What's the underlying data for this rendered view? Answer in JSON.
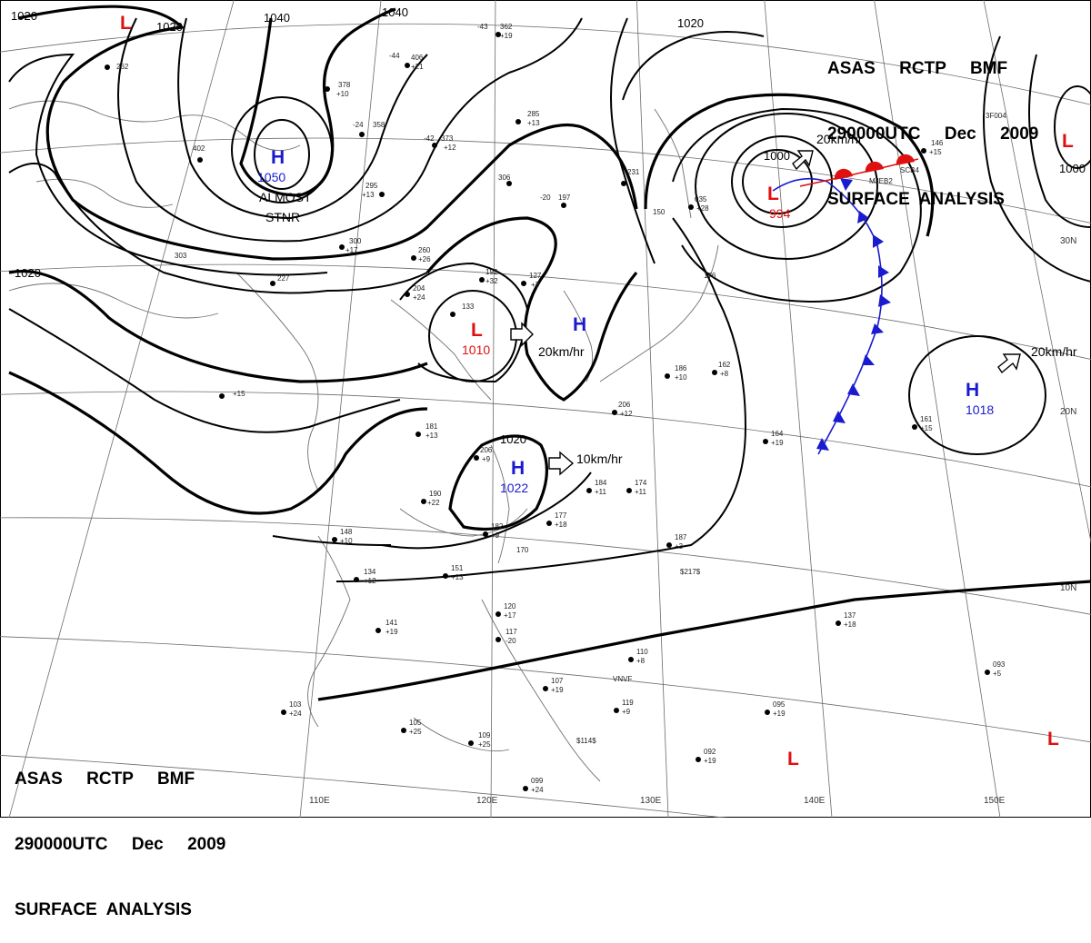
{
  "header": {
    "line1": "ASAS     RCTP     BMF",
    "line2": "290000UTC     Dec     2009",
    "line3": "SURFACE  ANALYSIS"
  },
  "footer": {
    "line1": "ASAS     RCTP     BMF",
    "line2": "290000UTC     Dec     2009",
    "line3": "SURFACE  ANALYSIS"
  },
  "longitudes": [
    "110E",
    "120E",
    "130E",
    "140E",
    "150E"
  ],
  "latitudes": [
    "30N",
    "20N",
    "10N"
  ],
  "isobar_labels": [
    "1020",
    "1020",
    "1040",
    "1040",
    "1020",
    "1000",
    "1020",
    "1000",
    "1020"
  ],
  "systems": [
    {
      "type": "H",
      "pressure": "1050",
      "note1": "ALMOST",
      "note2": "STNR"
    },
    {
      "type": "L",
      "pressure": "1010",
      "movement": "20km/hr"
    },
    {
      "type": "H",
      "pressure": ""
    },
    {
      "type": "H",
      "pressure": "1022",
      "movement": "10km/hr"
    },
    {
      "type": "L",
      "pressure": "994",
      "movement": "20km/hr"
    },
    {
      "type": "H",
      "pressure": "1018",
      "movement": "20km/hr"
    },
    {
      "type": "L",
      "pressure": ""
    },
    {
      "type": "L",
      "pressure": ""
    },
    {
      "type": "L",
      "pressure": ""
    },
    {
      "type": "L",
      "pressure": ""
    }
  ],
  "colors": {
    "high": "#1a1ad0",
    "low": "#e01010",
    "cold_front": "#1a1ad0",
    "warm_front": "#e01010"
  },
  "station_values": [
    "-43",
    "362",
    "+19",
    "-44",
    "406",
    "+21",
    "378",
    "+10",
    "-24",
    "358",
    "-42",
    "373",
    "+12",
    "262",
    "402",
    "295",
    "+13",
    "300",
    "+17",
    "260",
    "+26",
    "303",
    "227",
    "204",
    "+24",
    "192",
    "+32",
    "127",
    "+3",
    "133",
    "-20",
    "197",
    "306",
    "285",
    "+13",
    "231",
    "035",
    "+28",
    "150",
    "176",
    "186",
    "+10",
    "162",
    "+8",
    "206",
    "+12",
    "+15",
    "181",
    "+13",
    "206",
    "+9",
    "190",
    "+22",
    "182",
    "+9",
    "170",
    "177",
    "+18",
    "184",
    "+11",
    "174",
    "+11",
    "187",
    "+3",
    "148",
    "+10",
    "134",
    "+12",
    "151",
    "+13",
    "141",
    "+19",
    "120",
    "+17",
    "117",
    "-20",
    "107",
    "+19",
    "103",
    "+24",
    "105",
    "+25",
    "109",
    "+25",
    "099",
    "+24",
    "110",
    "+8",
    "119",
    "+9",
    "092",
    "+19",
    "095",
    "+19",
    "093",
    "+5",
    "137",
    "+18",
    "161",
    "+15",
    "164",
    "+19",
    "146",
    "+15",
    "$217$",
    "$114$",
    "VNVF",
    "3F004",
    "MJEB2",
    "SCB4"
  ]
}
